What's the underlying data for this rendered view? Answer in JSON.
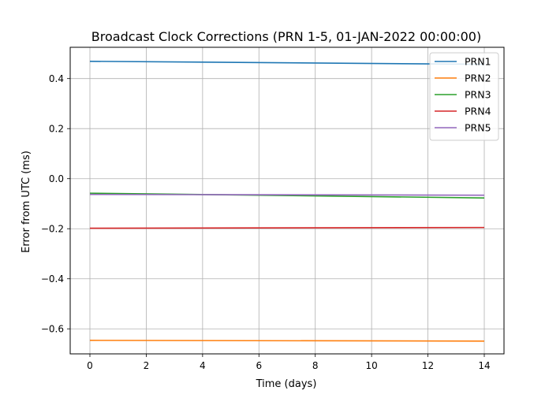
{
  "chart_data": {
    "type": "line",
    "title": "Broadcast Clock Corrections (PRN 1-5, 01-JAN-2022 00:00:00)",
    "xlabel": "Time (days)",
    "ylabel": "Error from UTC (ms)",
    "xlim": [
      -0.7,
      14.7
    ],
    "ylim": [
      -0.7,
      0.525
    ],
    "xticks": [
      0,
      2,
      4,
      6,
      8,
      10,
      12,
      14
    ],
    "xtick_labels": [
      "0",
      "2",
      "4",
      "6",
      "8",
      "10",
      "12",
      "14"
    ],
    "yticks": [
      -0.6,
      -0.4,
      -0.2,
      0.0,
      0.2,
      0.4
    ],
    "ytick_labels": [
      "−0.6",
      "−0.4",
      "−0.2",
      "0.0",
      "0.2",
      "0.4"
    ],
    "grid": true,
    "legend_position": "top-right",
    "series": [
      {
        "name": "PRN1",
        "color": "#1f77b4",
        "x": [
          0,
          14
        ],
        "y": [
          0.469,
          0.457
        ]
      },
      {
        "name": "PRN2",
        "color": "#ff7f0e",
        "x": [
          0,
          14
        ],
        "y": [
          -0.646,
          -0.649
        ]
      },
      {
        "name": "PRN3",
        "color": "#2ca02c",
        "x": [
          0,
          14
        ],
        "y": [
          -0.058,
          -0.077
        ]
      },
      {
        "name": "PRN4",
        "color": "#d62728",
        "x": [
          0,
          14
        ],
        "y": [
          -0.198,
          -0.195
        ]
      },
      {
        "name": "PRN5",
        "color": "#9467bd",
        "x": [
          0,
          14
        ],
        "y": [
          -0.063,
          -0.066
        ]
      }
    ]
  }
}
